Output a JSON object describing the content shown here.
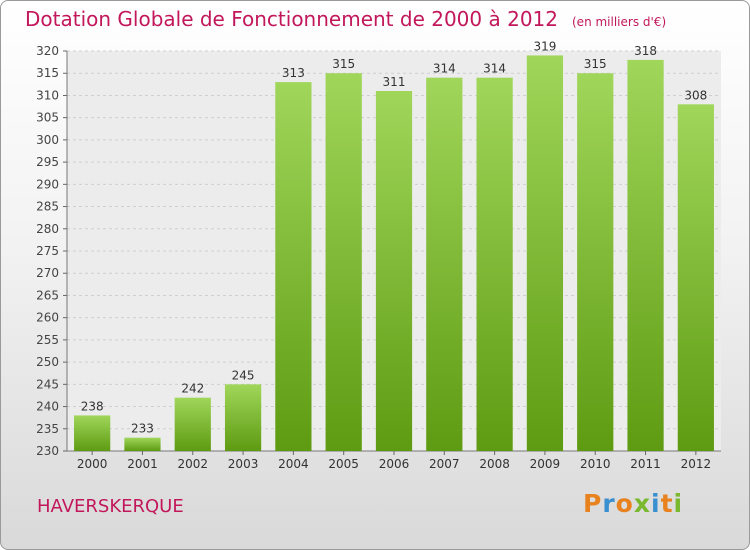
{
  "header": {
    "title": "Dotation Globale de Fonctionnement de 2000 à 2012",
    "unit": "(en milliers d'€)"
  },
  "footer": {
    "commune": "HAVERSKERQUE",
    "brand": "Proxiti"
  },
  "colors": {
    "title": "#c2185b",
    "bar_top": "#a0d65a",
    "bar_bottom": "#5e9b12",
    "logo_letters": [
      "#e8821e",
      "#3a8fd0",
      "#e8821e",
      "#7ab82e",
      "#3a8fd0",
      "#e8821e",
      "#7ab82e"
    ]
  },
  "chart_data": {
    "type": "bar",
    "categories": [
      "2000",
      "2001",
      "2002",
      "2003",
      "2004",
      "2005",
      "2006",
      "2007",
      "2008",
      "2009",
      "2010",
      "2011",
      "2012"
    ],
    "values": [
      238,
      233,
      242,
      245,
      313,
      315,
      311,
      314,
      314,
      319,
      315,
      318,
      308
    ],
    "ylim": [
      230,
      320
    ],
    "ytick_step": 5,
    "grid": true,
    "data_labels": true
  }
}
